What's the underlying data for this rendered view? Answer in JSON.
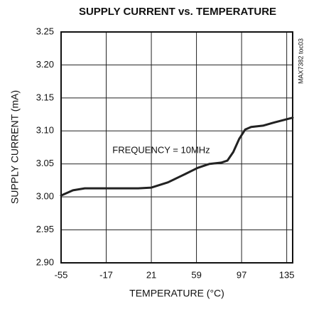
{
  "chart_data": {
    "type": "line",
    "title": "SUPPLY CURRENT vs. TEMPERATURE",
    "x_label": "TEMPERATURE (°C)",
    "y_label": "SUPPLY CURRENT (mA)",
    "annotations": [
      "FREQUENCY = 10MHz",
      "MAX7382 toc03"
    ],
    "x": [
      -55,
      -45,
      -35,
      -17,
      10,
      21,
      35,
      50,
      60,
      70,
      80,
      85,
      90,
      95,
      100,
      105,
      115,
      125,
      140
    ],
    "values": [
      3.002,
      3.01,
      3.013,
      3.013,
      3.013,
      3.014,
      3.022,
      3.035,
      3.044,
      3.05,
      3.052,
      3.055,
      3.068,
      3.088,
      3.102,
      3.106,
      3.108,
      3.113,
      3.12
    ],
    "color": "#222222",
    "xlim": [
      -55,
      140
    ],
    "ylim": [
      2.9,
      3.25
    ],
    "xticks": [
      -55,
      -17,
      21,
      59,
      97,
      135
    ],
    "yticks": [
      {
        "value": 2.9,
        "label": "2.90"
      },
      2.95,
      {
        "value": 3.0,
        "label": "3.00"
      },
      3.05,
      {
        "value": 3.1,
        "label": "3.10"
      },
      3.15,
      {
        "value": 3.2,
        "label": "3.20"
      },
      3.25
    ],
    "grid": true
  }
}
